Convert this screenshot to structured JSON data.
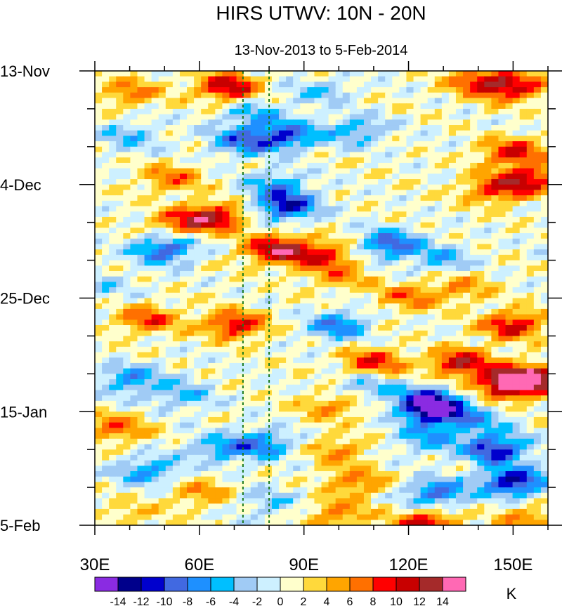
{
  "chart_data": {
    "type": "heatmap",
    "title": "HIRS UTWV: 10N - 20N",
    "subtitle": "13-Nov-2013 to 5-Feb-2014",
    "xlabel": "",
    "ylabel": "",
    "xlim": [
      30,
      160
    ],
    "ylim_days": [
      0,
      84
    ],
    "x_ticks": [
      {
        "value": 30,
        "label": "30E"
      },
      {
        "value": 60,
        "label": "60E"
      },
      {
        "value": 90,
        "label": "90E"
      },
      {
        "value": 120,
        "label": "120E"
      },
      {
        "value": 150,
        "label": "150E"
      }
    ],
    "y_ticks": [
      {
        "value": 0,
        "label": "13-Nov"
      },
      {
        "value": 21,
        "label": "4-Dec"
      },
      {
        "value": 42,
        "label": "25-Dec"
      },
      {
        "value": 63,
        "label": "15-Jan"
      },
      {
        "value": 84,
        "label": "5-Feb"
      }
    ],
    "reference_lines_lon": [
      72.5,
      80
    ],
    "colorbar": {
      "unit": "K",
      "levels": [
        -14,
        -12,
        -10,
        -8,
        -6,
        -4,
        -2,
        0,
        2,
        4,
        6,
        8,
        10,
        12,
        14
      ],
      "level_labels": [
        "-14",
        "-12",
        "-10",
        "-8",
        "-6",
        "-4",
        "-2",
        "0",
        "2",
        "4",
        "6",
        "8",
        "10",
        "12",
        "14"
      ],
      "colors": [
        "#8a2be2",
        "#00008b",
        "#0000cd",
        "#4169e1",
        "#1e90ff",
        "#00bfff",
        "#a0cbf5",
        "#cdf0ff",
        "#ffffcc",
        "#ffd93b",
        "#ffa500",
        "#ff7000",
        "#ff0000",
        "#c80000",
        "#a52a2a",
        "#ff69b4"
      ]
    },
    "features": [
      {
        "lon": 68,
        "day": 3,
        "value": 11
      },
      {
        "lon": 150,
        "day": 3,
        "value": 10
      },
      {
        "lon": 140,
        "day": 2,
        "value": 8
      },
      {
        "lon": 40,
        "day": 4,
        "value": 6
      },
      {
        "lon": 95,
        "day": 4,
        "value": -4
      },
      {
        "lon": 85,
        "day": 12,
        "value": -10
      },
      {
        "lon": 105,
        "day": 11,
        "value": -6
      },
      {
        "lon": 72,
        "day": 13,
        "value": -8
      },
      {
        "lon": 75,
        "day": 8,
        "value": -5
      },
      {
        "lon": 150,
        "day": 15,
        "value": 9
      },
      {
        "lon": 40,
        "day": 12,
        "value": -5
      },
      {
        "lon": 52,
        "day": 20,
        "value": 6
      },
      {
        "lon": 155,
        "day": 20,
        "value": 9
      },
      {
        "lon": 85,
        "day": 25,
        "value": -12
      },
      {
        "lon": 82,
        "day": 21,
        "value": -6
      },
      {
        "lon": 145,
        "day": 22,
        "value": 8
      },
      {
        "lon": 65,
        "day": 27,
        "value": 10
      },
      {
        "lon": 55,
        "day": 28,
        "value": 7
      },
      {
        "lon": 82,
        "day": 33,
        "value": 12
      },
      {
        "lon": 95,
        "day": 34,
        "value": 8
      },
      {
        "lon": 50,
        "day": 33,
        "value": -10
      },
      {
        "lon": 115,
        "day": 32,
        "value": -10
      },
      {
        "lon": 130,
        "day": 35,
        "value": -5
      },
      {
        "lon": 100,
        "day": 38,
        "value": 5
      },
      {
        "lon": 135,
        "day": 40,
        "value": 5
      },
      {
        "lon": 32,
        "day": 40,
        "value": -3
      },
      {
        "lon": 120,
        "day": 42,
        "value": 6
      },
      {
        "lon": 70,
        "day": 47,
        "value": 10
      },
      {
        "lon": 45,
        "day": 46,
        "value": 8
      },
      {
        "lon": 100,
        "day": 47,
        "value": -8
      },
      {
        "lon": 150,
        "day": 47,
        "value": 10
      },
      {
        "lon": 110,
        "day": 54,
        "value": 9
      },
      {
        "lon": 135,
        "day": 54,
        "value": 11
      },
      {
        "lon": 155,
        "day": 57,
        "value": 14
      },
      {
        "lon": 148,
        "day": 58,
        "value": 12
      },
      {
        "lon": 40,
        "day": 57,
        "value": -7
      },
      {
        "lon": 55,
        "day": 60,
        "value": -5
      },
      {
        "lon": 125,
        "day": 61,
        "value": -10
      },
      {
        "lon": 128,
        "day": 63,
        "value": -13
      },
      {
        "lon": 108,
        "day": 58,
        "value": -5
      },
      {
        "lon": 98,
        "day": 62,
        "value": 5
      },
      {
        "lon": 140,
        "day": 65,
        "value": -5
      },
      {
        "lon": 36,
        "day": 66,
        "value": 7
      },
      {
        "lon": 65,
        "day": 70,
        "value": -6
      },
      {
        "lon": 78,
        "day": 69,
        "value": -8
      },
      {
        "lon": 145,
        "day": 70,
        "value": -12
      },
      {
        "lon": 125,
        "day": 68,
        "value": -6
      },
      {
        "lon": 100,
        "day": 70,
        "value": 5
      },
      {
        "lon": 45,
        "day": 74,
        "value": -7
      },
      {
        "lon": 105,
        "day": 76,
        "value": 6
      },
      {
        "lon": 150,
        "day": 76,
        "value": -13
      },
      {
        "lon": 128,
        "day": 78,
        "value": -9
      },
      {
        "lon": 60,
        "day": 78,
        "value": 5
      },
      {
        "lon": 40,
        "day": 82,
        "value": 3
      },
      {
        "lon": 125,
        "day": 84,
        "value": 11
      },
      {
        "lon": 100,
        "day": 82,
        "value": 6
      },
      {
        "lon": 155,
        "day": 83,
        "value": 6
      },
      {
        "lon": 80,
        "day": 80,
        "value": -4
      }
    ]
  }
}
